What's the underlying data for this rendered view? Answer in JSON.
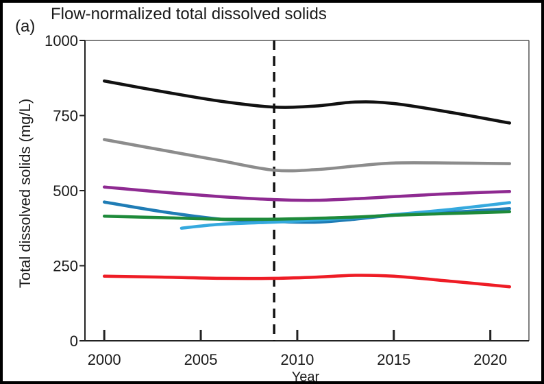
{
  "chart_data": {
    "type": "line",
    "panel_label": "(a)",
    "title": "Flow-normalized total dissolved solids",
    "xlabel": "Year",
    "ylabel": "Total dissolved solids (mg/L)",
    "xlim": [
      1999,
      2022
    ],
    "ylim": [
      0,
      1000
    ],
    "xticks": [
      2000,
      2005,
      2010,
      2015,
      2020
    ],
    "yticks": [
      0,
      250,
      500,
      750,
      1000
    ],
    "grid": false,
    "legend": "none",
    "reference_line": {
      "x": 2008.8,
      "style": "dashed",
      "color": "#111111"
    },
    "series": [
      {
        "color": "#111111",
        "points": [
          [
            2000,
            865
          ],
          [
            2003,
            830
          ],
          [
            2006,
            798
          ],
          [
            2008.8,
            778
          ],
          [
            2011,
            782
          ],
          [
            2013,
            795
          ],
          [
            2015,
            790
          ],
          [
            2018,
            760
          ],
          [
            2021,
            725
          ]
        ]
      },
      {
        "color": "#8c8c8c",
        "points": [
          [
            2000,
            670
          ],
          [
            2003,
            635
          ],
          [
            2006,
            600
          ],
          [
            2008.8,
            568
          ],
          [
            2011,
            570
          ],
          [
            2013,
            582
          ],
          [
            2015,
            592
          ],
          [
            2018,
            592
          ],
          [
            2021,
            590
          ]
        ]
      },
      {
        "color": "#8e2a91",
        "points": [
          [
            2000,
            512
          ],
          [
            2003,
            495
          ],
          [
            2006,
            480
          ],
          [
            2008.8,
            470
          ],
          [
            2011,
            468
          ],
          [
            2013,
            473
          ],
          [
            2015,
            480
          ],
          [
            2018,
            490
          ],
          [
            2021,
            497
          ]
        ]
      },
      {
        "color": "#1f7cb5",
        "points": [
          [
            2000,
            462
          ],
          [
            2003,
            430
          ],
          [
            2006,
            405
          ],
          [
            2008.8,
            397
          ],
          [
            2011,
            395
          ],
          [
            2013,
            405
          ],
          [
            2015,
            418
          ],
          [
            2018,
            428
          ],
          [
            2021,
            440
          ]
        ]
      },
      {
        "color": "#35a9de",
        "points": [
          [
            2004,
            375
          ],
          [
            2006,
            388
          ],
          [
            2008.8,
            395
          ],
          [
            2011,
            402
          ],
          [
            2013,
            410
          ],
          [
            2015,
            420
          ],
          [
            2018,
            438
          ],
          [
            2021,
            460
          ]
        ]
      },
      {
        "color": "#1e8a3a",
        "points": [
          [
            2000,
            415
          ],
          [
            2003,
            410
          ],
          [
            2006,
            405
          ],
          [
            2008.8,
            405
          ],
          [
            2011,
            408
          ],
          [
            2013,
            412
          ],
          [
            2015,
            418
          ],
          [
            2018,
            424
          ],
          [
            2021,
            430
          ]
        ]
      },
      {
        "color": "#ee1c25",
        "points": [
          [
            2000,
            215
          ],
          [
            2003,
            212
          ],
          [
            2006,
            208
          ],
          [
            2008.8,
            208
          ],
          [
            2011,
            212
          ],
          [
            2013,
            218
          ],
          [
            2015,
            215
          ],
          [
            2018,
            198
          ],
          [
            2021,
            180
          ]
        ]
      }
    ]
  }
}
